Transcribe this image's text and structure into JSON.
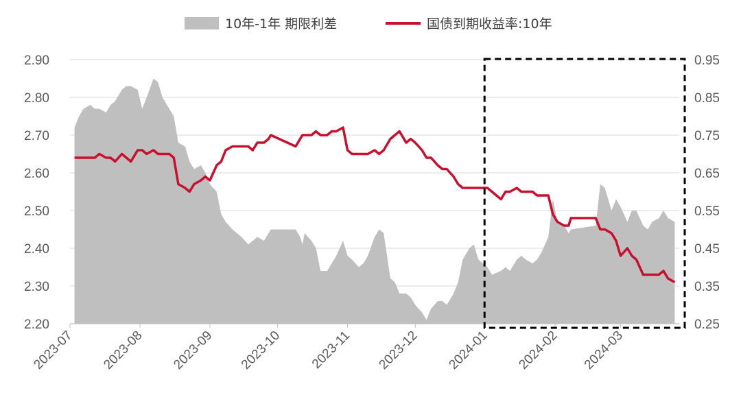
{
  "chart_data": {
    "type": "area",
    "title": "",
    "legend": {
      "position": "top-center"
    },
    "series": [
      {
        "name": "10年-1年 期限利差",
        "type": "area",
        "axis": "right",
        "color": "#bfbfbf"
      },
      {
        "name": "国债到期收益率:10年",
        "type": "line",
        "axis": "left",
        "color": "#c8102e"
      }
    ],
    "left_axis": {
      "ticks": [
        "2.90",
        "2.80",
        "2.70",
        "2.60",
        "2.50",
        "2.40",
        "2.30",
        "2.20"
      ],
      "ylim": [
        2.2,
        2.9
      ]
    },
    "right_axis": {
      "ticks": [
        "0.95",
        "0.85",
        "0.75",
        "0.65",
        "0.55",
        "0.45",
        "0.35",
        "0.25"
      ],
      "ylim": [
        0.25,
        0.95
      ]
    },
    "x_ticks": [
      "2023-07",
      "2023-08",
      "2023-09",
      "2023-10",
      "2023-11",
      "2023-12",
      "2024-01",
      "2024-02",
      "2024-03"
    ],
    "highlight": {
      "from": "2024-01",
      "to": "2024-03 end",
      "style": "dashed box"
    },
    "spread_points": [
      [
        "2023-07-03",
        0.77
      ],
      [
        "2023-07-05",
        0.8
      ],
      [
        "2023-07-07",
        0.82
      ],
      [
        "2023-07-10",
        0.83
      ],
      [
        "2023-07-12",
        0.82
      ],
      [
        "2023-07-14",
        0.82
      ],
      [
        "2023-07-17",
        0.81
      ],
      [
        "2023-07-19",
        0.83
      ],
      [
        "2023-07-21",
        0.84
      ],
      [
        "2023-07-24",
        0.87
      ],
      [
        "2023-07-26",
        0.88
      ],
      [
        "2023-07-28",
        0.88
      ],
      [
        "2023-07-31",
        0.87
      ],
      [
        "2023-08-02",
        0.82
      ],
      [
        "2023-08-04",
        0.85
      ],
      [
        "2023-08-07",
        0.9
      ],
      [
        "2023-08-09",
        0.89
      ],
      [
        "2023-08-11",
        0.85
      ],
      [
        "2023-08-14",
        0.82
      ],
      [
        "2023-08-16",
        0.8
      ],
      [
        "2023-08-18",
        0.73
      ],
      [
        "2023-08-21",
        0.72
      ],
      [
        "2023-08-23",
        0.68
      ],
      [
        "2023-08-25",
        0.66
      ],
      [
        "2023-08-28",
        0.67
      ],
      [
        "2023-08-30",
        0.65
      ],
      [
        "2023-09-01",
        0.62
      ],
      [
        "2023-09-04",
        0.6
      ],
      [
        "2023-09-06",
        0.54
      ],
      [
        "2023-09-08",
        0.52
      ],
      [
        "2023-09-11",
        0.5
      ],
      [
        "2023-09-13",
        0.49
      ],
      [
        "2023-09-15",
        0.48
      ],
      [
        "2023-09-18",
        0.46
      ],
      [
        "2023-09-20",
        0.47
      ],
      [
        "2023-09-22",
        0.48
      ],
      [
        "2023-09-25",
        0.47
      ],
      [
        "2023-09-27",
        0.49
      ],
      [
        "2023-09-28",
        0.5
      ],
      [
        "2023-10-09",
        0.5
      ],
      [
        "2023-10-11",
        0.48
      ],
      [
        "2023-10-12",
        0.46
      ],
      [
        "2023-10-13",
        0.49
      ],
      [
        "2023-10-16",
        0.47
      ],
      [
        "2023-10-18",
        0.45
      ],
      [
        "2023-10-20",
        0.39
      ],
      [
        "2023-10-23",
        0.39
      ],
      [
        "2023-10-25",
        0.41
      ],
      [
        "2023-10-27",
        0.43
      ],
      [
        "2023-10-30",
        0.47
      ],
      [
        "2023-11-01",
        0.43
      ],
      [
        "2023-11-03",
        0.42
      ],
      [
        "2023-11-06",
        0.4
      ],
      [
        "2023-11-08",
        0.41
      ],
      [
        "2023-11-10",
        0.43
      ],
      [
        "2023-11-13",
        0.48
      ],
      [
        "2023-11-15",
        0.5
      ],
      [
        "2023-11-17",
        0.49
      ],
      [
        "2023-11-20",
        0.37
      ],
      [
        "2023-11-22",
        0.36
      ],
      [
        "2023-11-24",
        0.33
      ],
      [
        "2023-11-27",
        0.33
      ],
      [
        "2023-11-29",
        0.32
      ],
      [
        "2023-12-01",
        0.3
      ],
      [
        "2023-12-04",
        0.28
      ],
      [
        "2023-12-06",
        0.26
      ],
      [
        "2023-12-08",
        0.29
      ],
      [
        "2023-12-11",
        0.31
      ],
      [
        "2023-12-13",
        0.31
      ],
      [
        "2023-12-15",
        0.3
      ],
      [
        "2023-12-18",
        0.33
      ],
      [
        "2023-12-20",
        0.36
      ],
      [
        "2023-12-22",
        0.42
      ],
      [
        "2023-12-25",
        0.45
      ],
      [
        "2023-12-27",
        0.46
      ],
      [
        "2023-12-29",
        0.42
      ],
      [
        "2024-01-02",
        0.4
      ],
      [
        "2024-01-04",
        0.38
      ],
      [
        "2024-01-08",
        0.39
      ],
      [
        "2024-01-10",
        0.4
      ],
      [
        "2024-01-12",
        0.39
      ],
      [
        "2024-01-15",
        0.42
      ],
      [
        "2024-01-17",
        0.43
      ],
      [
        "2024-01-19",
        0.42
      ],
      [
        "2024-01-22",
        0.41
      ],
      [
        "2024-01-24",
        0.42
      ],
      [
        "2024-01-26",
        0.44
      ],
      [
        "2024-01-29",
        0.48
      ],
      [
        "2024-01-31",
        0.58
      ],
      [
        "2024-02-02",
        0.52
      ],
      [
        "2024-02-05",
        0.51
      ],
      [
        "2024-02-07",
        0.49
      ],
      [
        "2024-02-08",
        0.5
      ],
      [
        "2024-02-19",
        0.51
      ],
      [
        "2024-02-21",
        0.62
      ],
      [
        "2024-02-23",
        0.61
      ],
      [
        "2024-02-26",
        0.55
      ],
      [
        "2024-02-28",
        0.58
      ],
      [
        "2024-03-01",
        0.56
      ],
      [
        "2024-03-04",
        0.52
      ],
      [
        "2024-03-06",
        0.55
      ],
      [
        "2024-03-08",
        0.55
      ],
      [
        "2024-03-11",
        0.51
      ],
      [
        "2024-03-13",
        0.5
      ],
      [
        "2024-03-15",
        0.52
      ],
      [
        "2024-03-18",
        0.53
      ],
      [
        "2024-03-20",
        0.55
      ],
      [
        "2024-03-22",
        0.53
      ],
      [
        "2024-03-25",
        0.52
      ]
    ],
    "yield_points": [
      [
        "2023-07-03",
        2.64
      ],
      [
        "2023-07-05",
        2.64
      ],
      [
        "2023-07-07",
        2.64
      ],
      [
        "2023-07-10",
        2.64
      ],
      [
        "2023-07-12",
        2.64
      ],
      [
        "2023-07-14",
        2.65
      ],
      [
        "2023-07-17",
        2.64
      ],
      [
        "2023-07-19",
        2.64
      ],
      [
        "2023-07-21",
        2.63
      ],
      [
        "2023-07-24",
        2.65
      ],
      [
        "2023-07-26",
        2.64
      ],
      [
        "2023-07-28",
        2.63
      ],
      [
        "2023-07-31",
        2.66
      ],
      [
        "2023-08-02",
        2.66
      ],
      [
        "2023-08-04",
        2.65
      ],
      [
        "2023-08-07",
        2.66
      ],
      [
        "2023-08-09",
        2.65
      ],
      [
        "2023-08-11",
        2.65
      ],
      [
        "2023-08-14",
        2.65
      ],
      [
        "2023-08-16",
        2.64
      ],
      [
        "2023-08-18",
        2.57
      ],
      [
        "2023-08-21",
        2.56
      ],
      [
        "2023-08-23",
        2.55
      ],
      [
        "2023-08-25",
        2.57
      ],
      [
        "2023-08-28",
        2.58
      ],
      [
        "2023-08-30",
        2.59
      ],
      [
        "2023-09-01",
        2.58
      ],
      [
        "2023-09-04",
        2.62
      ],
      [
        "2023-09-06",
        2.63
      ],
      [
        "2023-09-08",
        2.66
      ],
      [
        "2023-09-11",
        2.67
      ],
      [
        "2023-09-13",
        2.67
      ],
      [
        "2023-09-15",
        2.67
      ],
      [
        "2023-09-18",
        2.67
      ],
      [
        "2023-09-20",
        2.66
      ],
      [
        "2023-09-22",
        2.68
      ],
      [
        "2023-09-25",
        2.68
      ],
      [
        "2023-09-27",
        2.69
      ],
      [
        "2023-09-28",
        2.7
      ],
      [
        "2023-10-09",
        2.67
      ],
      [
        "2023-10-11",
        2.69
      ],
      [
        "2023-10-12",
        2.7
      ],
      [
        "2023-10-13",
        2.7
      ],
      [
        "2023-10-16",
        2.7
      ],
      [
        "2023-10-18",
        2.71
      ],
      [
        "2023-10-20",
        2.7
      ],
      [
        "2023-10-23",
        2.7
      ],
      [
        "2023-10-25",
        2.71
      ],
      [
        "2023-10-27",
        2.71
      ],
      [
        "2023-10-30",
        2.72
      ],
      [
        "2023-11-01",
        2.66
      ],
      [
        "2023-11-03",
        2.65
      ],
      [
        "2023-11-06",
        2.65
      ],
      [
        "2023-11-08",
        2.65
      ],
      [
        "2023-11-10",
        2.65
      ],
      [
        "2023-11-13",
        2.66
      ],
      [
        "2023-11-15",
        2.65
      ],
      [
        "2023-11-17",
        2.66
      ],
      [
        "2023-11-20",
        2.69
      ],
      [
        "2023-11-22",
        2.7
      ],
      [
        "2023-11-24",
        2.71
      ],
      [
        "2023-11-27",
        2.68
      ],
      [
        "2023-11-29",
        2.69
      ],
      [
        "2023-12-01",
        2.68
      ],
      [
        "2023-12-04",
        2.66
      ],
      [
        "2023-12-06",
        2.64
      ],
      [
        "2023-12-08",
        2.64
      ],
      [
        "2023-12-11",
        2.62
      ],
      [
        "2023-12-13",
        2.61
      ],
      [
        "2023-12-15",
        2.61
      ],
      [
        "2023-12-18",
        2.59
      ],
      [
        "2023-12-20",
        2.57
      ],
      [
        "2023-12-22",
        2.56
      ],
      [
        "2023-12-25",
        2.56
      ],
      [
        "2023-12-27",
        2.56
      ],
      [
        "2023-12-29",
        2.56
      ],
      [
        "2024-01-02",
        2.56
      ],
      [
        "2024-01-04",
        2.55
      ],
      [
        "2024-01-08",
        2.53
      ],
      [
        "2024-01-10",
        2.55
      ],
      [
        "2024-01-12",
        2.55
      ],
      [
        "2024-01-15",
        2.56
      ],
      [
        "2024-01-17",
        2.55
      ],
      [
        "2024-01-19",
        2.55
      ],
      [
        "2024-01-22",
        2.55
      ],
      [
        "2024-01-24",
        2.54
      ],
      [
        "2024-01-26",
        2.54
      ],
      [
        "2024-01-29",
        2.54
      ],
      [
        "2024-01-31",
        2.49
      ],
      [
        "2024-02-02",
        2.47
      ],
      [
        "2024-02-05",
        2.46
      ],
      [
        "2024-02-07",
        2.46
      ],
      [
        "2024-02-08",
        2.48
      ],
      [
        "2024-02-19",
        2.48
      ],
      [
        "2024-02-21",
        2.45
      ],
      [
        "2024-02-23",
        2.45
      ],
      [
        "2024-02-26",
        2.44
      ],
      [
        "2024-02-28",
        2.42
      ],
      [
        "2024-03-01",
        2.38
      ],
      [
        "2024-03-04",
        2.4
      ],
      [
        "2024-03-06",
        2.38
      ],
      [
        "2024-03-08",
        2.37
      ],
      [
        "2024-03-11",
        2.33
      ],
      [
        "2024-03-13",
        2.33
      ],
      [
        "2024-03-15",
        2.33
      ],
      [
        "2024-03-18",
        2.33
      ],
      [
        "2024-03-20",
        2.34
      ],
      [
        "2024-03-22",
        2.32
      ],
      [
        "2024-03-25",
        2.31
      ]
    ]
  }
}
